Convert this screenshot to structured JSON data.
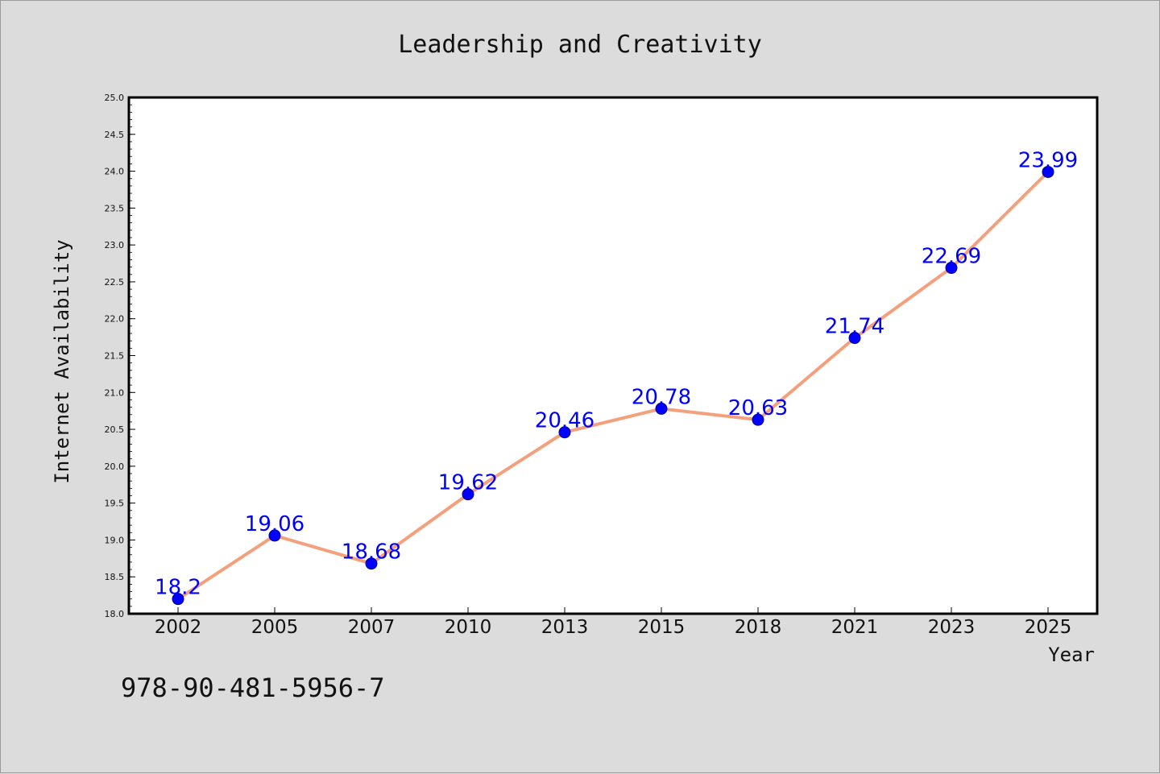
{
  "chart_data": {
    "type": "line",
    "title": "Leadership and Creativity",
    "xlabel": "Year",
    "ylabel": "Internet Availability",
    "categories": [
      "2002",
      "2005",
      "2007",
      "2010",
      "2013",
      "2015",
      "2018",
      "2021",
      "2023",
      "2025"
    ],
    "series": [
      {
        "values": [
          18.2,
          19.06,
          18.68,
          19.62,
          20.46,
          20.78,
          20.63,
          21.74,
          22.69,
          23.99
        ],
        "labels": [
          "18.2",
          "19.06",
          "18.68",
          "19.62",
          "20.46",
          "20.78",
          "20.63",
          "21.74",
          "22.69",
          "23.99"
        ]
      }
    ],
    "ylim": [
      18.0,
      25.0
    ],
    "yticks": [
      "18.0",
      "18.5",
      "19.0",
      "19.5",
      "20.0",
      "20.5",
      "21.0",
      "21.5",
      "22.0",
      "22.5",
      "23.0",
      "23.5",
      "24.0",
      "24.5",
      "25.0"
    ],
    "grid": false,
    "colors": {
      "line": "#f4a07c",
      "marker": "#0000ff",
      "labels": "#0000ff",
      "background": "#dcdcdc",
      "plot_area": "#ffffff"
    }
  },
  "footer": {
    "isbn": "978-90-481-5956-7"
  }
}
